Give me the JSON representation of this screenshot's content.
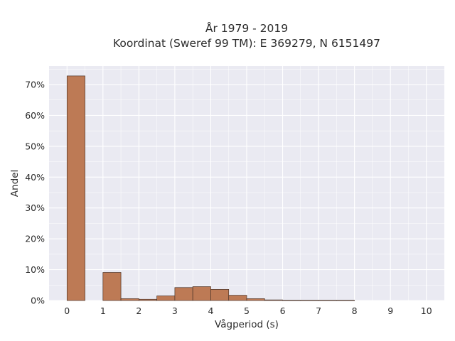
{
  "colors": {
    "plot_background": "#eaeaf2",
    "grid": "#ffffff",
    "bar_fill": "#bd7a55",
    "bar_edge": "#4a3328",
    "text": "#2b2b2b"
  },
  "chart_data": {
    "type": "bar",
    "title_line1": "År 1979 - 2019",
    "title_line2": "Koordinat (Sweref 99 TM): E 369279, N 6151497",
    "xlabel": "Vågperiod (s)",
    "ylabel": "Andel",
    "xlim": [
      -0.5,
      10.5
    ],
    "ylim": [
      0,
      0.76
    ],
    "x_ticks": [
      0,
      1,
      2,
      3,
      4,
      5,
      6,
      7,
      8,
      9,
      10
    ],
    "y_ticks": [
      0,
      0.1,
      0.2,
      0.3,
      0.4,
      0.5,
      0.6,
      0.7
    ],
    "y_tick_labels": [
      "0%",
      "10%",
      "20%",
      "30%",
      "40%",
      "50%",
      "60%",
      "70%"
    ],
    "grid": true,
    "bin_width": 0.5,
    "bins": [
      {
        "x0": 0.0,
        "value": 0.728
      },
      {
        "x0": 0.5,
        "value": 0.0
      },
      {
        "x0": 1.0,
        "value": 0.091
      },
      {
        "x0": 1.5,
        "value": 0.006
      },
      {
        "x0": 2.0,
        "value": 0.004
      },
      {
        "x0": 2.5,
        "value": 0.015
      },
      {
        "x0": 3.0,
        "value": 0.042
      },
      {
        "x0": 3.5,
        "value": 0.045
      },
      {
        "x0": 4.0,
        "value": 0.036
      },
      {
        "x0": 4.5,
        "value": 0.017
      },
      {
        "x0": 5.0,
        "value": 0.006
      },
      {
        "x0": 5.5,
        "value": 0.002
      },
      {
        "x0": 6.0,
        "value": 0.001
      },
      {
        "x0": 6.5,
        "value": 0.001
      },
      {
        "x0": 7.0,
        "value": 0.001
      },
      {
        "x0": 7.5,
        "value": 0.001
      }
    ]
  }
}
